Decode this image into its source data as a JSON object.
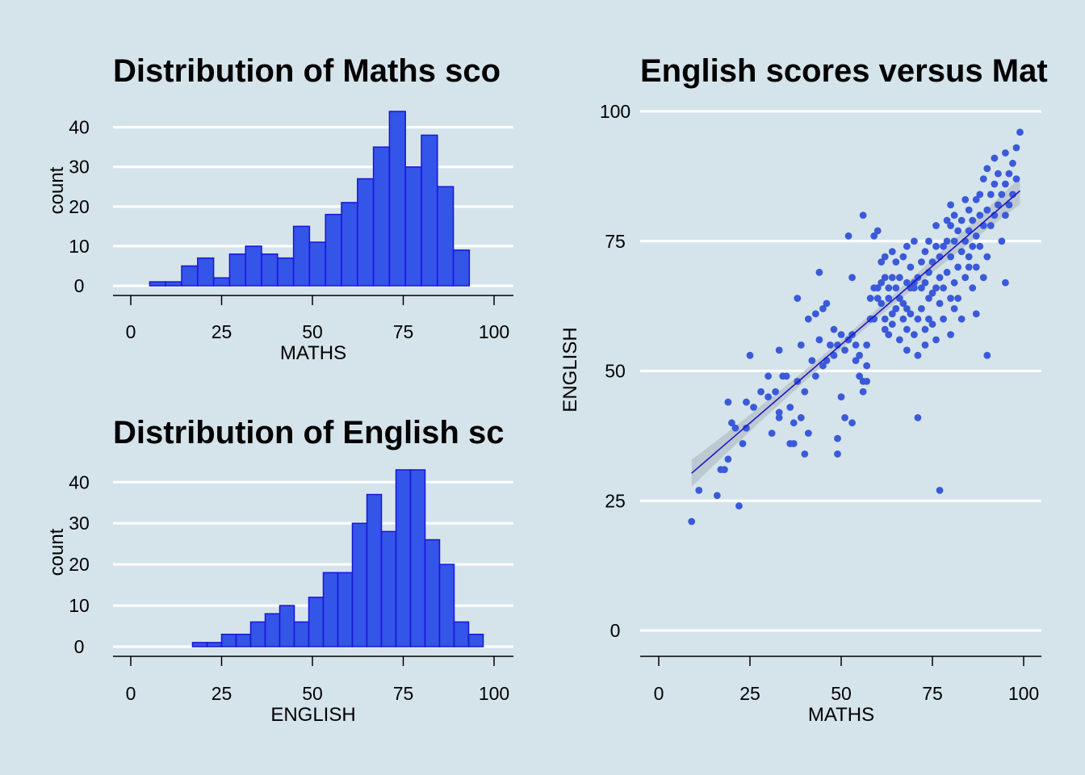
{
  "colors": {
    "background": "#d5e4eb",
    "bar_fill": "#3355e8",
    "bar_stroke": "#1a14d8",
    "point": "#3a5ad9",
    "fit_line": "#1a14c8",
    "confidence_band": "#b9c4cc",
    "grid": "#ffffff"
  },
  "chart_data": [
    {
      "type": "bar",
      "subtype": "histogram",
      "title": "Distribution of Maths sco",
      "xlabel": "MATHS",
      "ylabel": "count",
      "xlim": [
        0,
        100
      ],
      "ylim": [
        0,
        44
      ],
      "xticks": [
        0,
        25,
        50,
        75,
        100
      ],
      "yticks": [
        0,
        10,
        20,
        30,
        40
      ],
      "grid": "horizontal",
      "bin_width": 4.4,
      "bins": [
        {
          "x0": 5.2,
          "x1": 9.6,
          "count": 1
        },
        {
          "x0": 9.6,
          "x1": 14.0,
          "count": 1
        },
        {
          "x0": 14.0,
          "x1": 18.4,
          "count": 5
        },
        {
          "x0": 18.4,
          "x1": 22.8,
          "count": 7
        },
        {
          "x0": 22.8,
          "x1": 27.2,
          "count": 2
        },
        {
          "x0": 27.2,
          "x1": 31.6,
          "count": 8
        },
        {
          "x0": 31.6,
          "x1": 36.0,
          "count": 10
        },
        {
          "x0": 36.0,
          "x1": 40.4,
          "count": 8
        },
        {
          "x0": 40.4,
          "x1": 44.8,
          "count": 7
        },
        {
          "x0": 44.8,
          "x1": 49.2,
          "count": 15
        },
        {
          "x0": 49.2,
          "x1": 53.6,
          "count": 11
        },
        {
          "x0": 53.6,
          "x1": 58.0,
          "count": 18
        },
        {
          "x0": 58.0,
          "x1": 62.4,
          "count": 21
        },
        {
          "x0": 62.4,
          "x1": 66.8,
          "count": 27
        },
        {
          "x0": 66.8,
          "x1": 71.2,
          "count": 35
        },
        {
          "x0": 71.2,
          "x1": 75.6,
          "count": 44
        },
        {
          "x0": 75.6,
          "x1": 80.0,
          "count": 30
        },
        {
          "x0": 80.0,
          "x1": 84.4,
          "count": 38
        },
        {
          "x0": 84.4,
          "x1": 88.8,
          "count": 25
        },
        {
          "x0": 88.8,
          "x1": 93.2,
          "count": 9
        }
      ]
    },
    {
      "type": "bar",
      "subtype": "histogram",
      "title": "Distribution of English sc",
      "xlabel": "ENGLISH",
      "ylabel": "count",
      "xlim": [
        0,
        100
      ],
      "ylim": [
        0,
        43
      ],
      "xticks": [
        0,
        25,
        50,
        75,
        100
      ],
      "yticks": [
        0,
        10,
        20,
        30,
        40
      ],
      "grid": "horizontal",
      "bin_width": 4.0,
      "bins": [
        {
          "x0": 17.0,
          "x1": 21.0,
          "count": 1
        },
        {
          "x0": 21.0,
          "x1": 25.0,
          "count": 1
        },
        {
          "x0": 25.0,
          "x1": 29.0,
          "count": 3
        },
        {
          "x0": 29.0,
          "x1": 33.0,
          "count": 3
        },
        {
          "x0": 33.0,
          "x1": 37.0,
          "count": 6
        },
        {
          "x0": 37.0,
          "x1": 41.0,
          "count": 8
        },
        {
          "x0": 41.0,
          "x1": 45.0,
          "count": 10
        },
        {
          "x0": 45.0,
          "x1": 49.0,
          "count": 6
        },
        {
          "x0": 49.0,
          "x1": 53.0,
          "count": 12
        },
        {
          "x0": 53.0,
          "x1": 57.0,
          "count": 18
        },
        {
          "x0": 57.0,
          "x1": 61.0,
          "count": 18
        },
        {
          "x0": 61.0,
          "x1": 65.0,
          "count": 30
        },
        {
          "x0": 65.0,
          "x1": 69.0,
          "count": 37
        },
        {
          "x0": 69.0,
          "x1": 73.0,
          "count": 28
        },
        {
          "x0": 73.0,
          "x1": 77.0,
          "count": 43
        },
        {
          "x0": 77.0,
          "x1": 81.0,
          "count": 43
        },
        {
          "x0": 81.0,
          "x1": 85.0,
          "count": 26
        },
        {
          "x0": 85.0,
          "x1": 89.0,
          "count": 20
        },
        {
          "x0": 89.0,
          "x1": 93.0,
          "count": 6
        },
        {
          "x0": 93.0,
          "x1": 97.0,
          "count": 3
        }
      ]
    },
    {
      "type": "scatter",
      "title": "English scores versus Mat",
      "xlabel": "MATHS",
      "ylabel": "ENGLISH",
      "xlim": [
        0,
        100
      ],
      "ylim": [
        0,
        100
      ],
      "xticks": [
        0,
        25,
        50,
        75,
        100
      ],
      "yticks": [
        0,
        25,
        50,
        75,
        100
      ],
      "grid": "horizontal",
      "fit_line": {
        "method": "linear",
        "x": [
          9,
          99
        ],
        "y": [
          30.3,
          84.7
        ],
        "band_at_ends": 2.6,
        "band_at_center": 0.9
      },
      "points": [
        [
          9,
          21
        ],
        [
          11,
          27
        ],
        [
          16,
          26
        ],
        [
          17,
          31
        ],
        [
          18,
          31
        ],
        [
          19,
          33
        ],
        [
          19,
          44
        ],
        [
          20,
          40
        ],
        [
          21,
          39
        ],
        [
          22,
          24
        ],
        [
          23,
          36
        ],
        [
          24,
          44
        ],
        [
          24,
          39
        ],
        [
          25,
          53
        ],
        [
          26,
          43
        ],
        [
          28,
          46
        ],
        [
          30,
          45
        ],
        [
          30,
          49
        ],
        [
          31,
          38
        ],
        [
          32,
          46
        ],
        [
          33,
          42
        ],
        [
          33,
          41
        ],
        [
          33,
          54
        ],
        [
          34,
          49
        ],
        [
          35,
          49
        ],
        [
          36,
          36
        ],
        [
          36,
          43
        ],
        [
          37,
          36
        ],
        [
          37,
          40
        ],
        [
          38,
          48
        ],
        [
          38,
          64
        ],
        [
          39,
          41
        ],
        [
          39,
          55
        ],
        [
          40,
          34
        ],
        [
          40,
          46
        ],
        [
          41,
          38
        ],
        [
          41,
          60
        ],
        [
          42,
          52
        ],
        [
          43,
          49
        ],
        [
          43,
          61
        ],
        [
          44,
          69
        ],
        [
          44,
          56
        ],
        [
          45,
          51
        ],
        [
          45,
          62
        ],
        [
          46,
          52
        ],
        [
          46,
          63
        ],
        [
          47,
          55
        ],
        [
          48,
          58
        ],
        [
          48,
          53
        ],
        [
          49,
          37
        ],
        [
          49,
          34
        ],
        [
          49,
          55
        ],
        [
          50,
          45
        ],
        [
          50,
          57
        ],
        [
          51,
          41
        ],
        [
          51,
          54
        ],
        [
          52,
          56
        ],
        [
          52,
          76
        ],
        [
          53,
          57
        ],
        [
          53,
          40
        ],
        [
          53,
          68
        ],
        [
          54,
          55
        ],
        [
          54,
          52
        ],
        [
          55,
          49
        ],
        [
          55,
          53
        ],
        [
          56,
          48
        ],
        [
          56,
          46
        ],
        [
          56,
          80
        ],
        [
          57,
          55
        ],
        [
          57,
          48
        ],
        [
          57,
          51
        ],
        [
          58,
          60
        ],
        [
          58,
          60
        ],
        [
          58,
          64
        ],
        [
          59,
          66
        ],
        [
          59,
          60
        ],
        [
          59,
          76
        ],
        [
          60,
          77
        ],
        [
          60,
          66
        ],
        [
          60,
          64
        ],
        [
          61,
          63
        ],
        [
          61,
          67
        ],
        [
          61,
          71
        ],
        [
          62,
          58
        ],
        [
          62,
          60
        ],
        [
          62,
          68
        ],
        [
          62,
          72
        ],
        [
          63,
          57
        ],
        [
          63,
          64
        ],
        [
          63,
          66
        ],
        [
          64,
          61
        ],
        [
          64,
          59
        ],
        [
          64,
          68
        ],
        [
          64,
          73
        ],
        [
          65,
          62
        ],
        [
          65,
          66
        ],
        [
          65,
          71
        ],
        [
          66,
          56
        ],
        [
          66,
          64
        ],
        [
          66,
          68
        ],
        [
          67,
          60
        ],
        [
          67,
          63
        ],
        [
          67,
          72
        ],
        [
          68,
          54
        ],
        [
          68,
          58
        ],
        [
          68,
          62
        ],
        [
          68,
          67
        ],
        [
          68,
          74
        ],
        [
          69,
          66
        ],
        [
          69,
          61
        ],
        [
          69,
          70
        ],
        [
          70,
          57
        ],
        [
          70,
          66
        ],
        [
          70,
          67
        ],
        [
          70,
          75
        ],
        [
          71,
          53
        ],
        [
          71,
          41
        ],
        [
          71,
          60
        ],
        [
          71,
          68
        ],
        [
          72,
          62
        ],
        [
          72,
          66
        ],
        [
          72,
          71
        ],
        [
          73,
          55
        ],
        [
          73,
          58
        ],
        [
          73,
          67
        ],
        [
          73,
          73
        ],
        [
          74,
          60
        ],
        [
          74,
          64
        ],
        [
          74,
          69
        ],
        [
          74,
          75
        ],
        [
          75,
          59
        ],
        [
          75,
          65
        ],
        [
          75,
          71
        ],
        [
          76,
          56
        ],
        [
          76,
          66
        ],
        [
          76,
          74
        ],
        [
          76,
          78
        ],
        [
          77,
          27
        ],
        [
          77,
          63
        ],
        [
          77,
          68
        ],
        [
          77,
          72
        ],
        [
          78,
          60
        ],
        [
          78,
          66
        ],
        [
          78,
          74
        ],
        [
          79,
          69
        ],
        [
          79,
          75
        ],
        [
          79,
          79
        ],
        [
          80,
          57
        ],
        [
          80,
          64
        ],
        [
          80,
          72
        ],
        [
          80,
          78
        ],
        [
          80,
          82
        ],
        [
          81,
          62
        ],
        [
          81,
          67
        ],
        [
          81,
          75
        ],
        [
          81,
          80
        ],
        [
          82,
          64
        ],
        [
          82,
          70
        ],
        [
          82,
          77
        ],
        [
          83,
          60
        ],
        [
          83,
          73
        ],
        [
          83,
          79
        ],
        [
          84,
          68
        ],
        [
          84,
          75
        ],
        [
          84,
          83
        ],
        [
          85,
          70
        ],
        [
          85,
          72
        ],
        [
          85,
          77
        ],
        [
          85,
          81
        ],
        [
          86,
          66
        ],
        [
          86,
          74
        ],
        [
          86,
          79
        ],
        [
          87,
          61
        ],
        [
          87,
          70
        ],
        [
          87,
          76
        ],
        [
          87,
          83
        ],
        [
          88,
          74
        ],
        [
          88,
          80
        ],
        [
          88,
          84
        ],
        [
          89,
          68
        ],
        [
          89,
          78
        ],
        [
          89,
          87
        ],
        [
          90,
          53
        ],
        [
          90,
          72
        ],
        [
          90,
          81
        ],
        [
          90,
          89
        ],
        [
          91,
          78
        ],
        [
          91,
          84
        ],
        [
          92,
          80
        ],
        [
          92,
          86
        ],
        [
          92,
          91
        ],
        [
          93,
          82
        ],
        [
          93,
          88
        ],
        [
          94,
          75
        ],
        [
          94,
          84
        ],
        [
          95,
          67
        ],
        [
          95,
          80
        ],
        [
          95,
          86
        ],
        [
          95,
          92
        ],
        [
          96,
          82
        ],
        [
          96,
          88
        ],
        [
          97,
          84
        ],
        [
          97,
          90
        ],
        [
          98,
          87
        ],
        [
          98,
          93
        ],
        [
          99,
          96
        ]
      ]
    }
  ]
}
